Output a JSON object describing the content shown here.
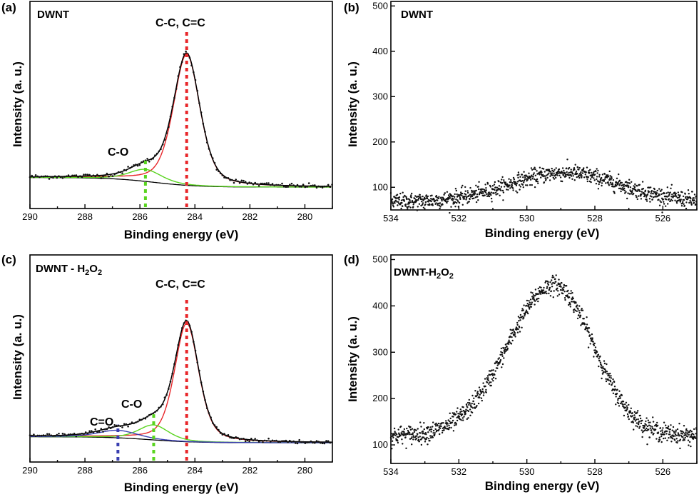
{
  "figure": {
    "panels": [
      {
        "letter": "(a)",
        "sample": "DWNT",
        "ylabel": "Intensity (a. u.)",
        "xlabel": "Binding energy (eV)",
        "peak_labels": [
          {
            "text": "C-C, C=C",
            "x": 284.3
          },
          {
            "text": "C-O",
            "x": 285.8
          }
        ]
      },
      {
        "letter": "(b)",
        "sample": "DWNT",
        "ylabel": "Intensity (a. u.)",
        "xlabel": "Binding energy (eV)"
      },
      {
        "letter": "(c)",
        "sample_text": "DWNT - H",
        "sub1": "2",
        "sample_mid": "O",
        "sub2": "2",
        "ylabel": "Intensity (a. u.)",
        "xlabel": "Binding energy (eV)",
        "peak_labels": [
          {
            "text": "C-C, C=C",
            "x": 284.3
          },
          {
            "text": "C-O",
            "x": 285.5
          },
          {
            "text": "C=O",
            "x": 286.8
          }
        ]
      },
      {
        "letter": "(d)",
        "sample_text": "DWNT-H",
        "sub1": "2",
        "sample_mid": "O",
        "sub2": "2",
        "ylabel": "Intensity (a. u.)",
        "xlabel": "Binding energy (eV)"
      }
    ]
  },
  "chart_data": [
    {
      "type": "line",
      "panel": "(a)",
      "title": "DWNT",
      "xlabel": "Binding energy (eV)",
      "ylabel": "Intensity (a. u.)",
      "xlim": [
        290,
        279
      ],
      "x_reversed": true,
      "xticks": [
        290,
        288,
        286,
        284,
        282,
        280
      ],
      "yticks_shown": false,
      "y_range_arbitrary": [
        0,
        1
      ],
      "background": {
        "a": 0.075,
        "b": 0.135,
        "center": 285.5,
        "width": 0.8
      },
      "components": [
        {
          "name": "C-C, C=C",
          "center": 284.3,
          "amplitude": 0.82,
          "fwhm": 1.15,
          "color": "#e8262a"
        },
        {
          "name": "C-O",
          "center": 285.8,
          "amplitude": 0.075,
          "fwhm": 1.4,
          "color": "#59d41f"
        }
      ],
      "envelope_color": "#000000",
      "markers": [
        {
          "x": 284.3,
          "color": "#e8262a",
          "y_top": 0.98
        },
        {
          "x": 285.8,
          "color": "#59d41f",
          "y_top": 0.18
        }
      ],
      "raw_points": "scattered around envelope"
    },
    {
      "type": "scatter",
      "panel": "(b)",
      "title": "DWNT",
      "xlabel": "Binding energy (eV)",
      "ylabel": "Intensity (a. u.)",
      "xlim": [
        534,
        525
      ],
      "x_reversed": true,
      "ylim": [
        50,
        510
      ],
      "xticks": [
        534,
        532,
        530,
        528,
        526
      ],
      "yticks": [
        100,
        200,
        300,
        400,
        500
      ],
      "profile": {
        "baseline": 68,
        "peak": 132,
        "center": 528.9,
        "width": 1.6
      },
      "noise": 9
    },
    {
      "type": "line",
      "panel": "(c)",
      "title": "DWNT - H2O2",
      "xlabel": "Binding energy (eV)",
      "ylabel": "Intensity (a. u.)",
      "xlim": [
        290,
        279
      ],
      "x_reversed": true,
      "xticks": [
        290,
        288,
        286,
        284,
        282,
        280
      ],
      "yticks_shown": false,
      "y_range_arbitrary": [
        0,
        1
      ],
      "background": {
        "a": 0.06,
        "b": 0.1,
        "center": 285.6,
        "width": 0.8
      },
      "components": [
        {
          "name": "C-C, C=C",
          "center": 284.3,
          "amplitude": 0.79,
          "fwhm": 1.05,
          "color": "#e8262a"
        },
        {
          "name": "C-O",
          "center": 285.5,
          "amplitude": 0.1,
          "fwhm": 1.3,
          "color": "#59d41f"
        },
        {
          "name": "C=O",
          "center": 286.8,
          "amplitude": 0.05,
          "fwhm": 1.7,
          "color": "#3a3fb0"
        }
      ],
      "envelope_color": "#000000",
      "markers": [
        {
          "x": 284.3,
          "color": "#e8262a",
          "y_top": 0.96
        },
        {
          "x": 285.5,
          "color": "#59d41f",
          "y_top": 0.19
        },
        {
          "x": 286.8,
          "color": "#3a3fb0",
          "y_top": 0.12
        }
      ],
      "raw_points": "scattered around envelope"
    },
    {
      "type": "scatter",
      "panel": "(d)",
      "title": "DWNT-H2O2",
      "xlabel": "Binding energy (eV)",
      "ylabel": "Intensity (a. u.)",
      "xlim": [
        534,
        525
      ],
      "x_reversed": true,
      "ylim": [
        60,
        510
      ],
      "xticks": [
        534,
        532,
        530,
        528,
        526
      ],
      "yticks": [
        100,
        200,
        300,
        400,
        500
      ],
      "profile": {
        "baseline": 120,
        "peak": 445,
        "center": 529.2,
        "width_low": 1.15,
        "width_high": 1.35
      },
      "noise": 10
    }
  ]
}
